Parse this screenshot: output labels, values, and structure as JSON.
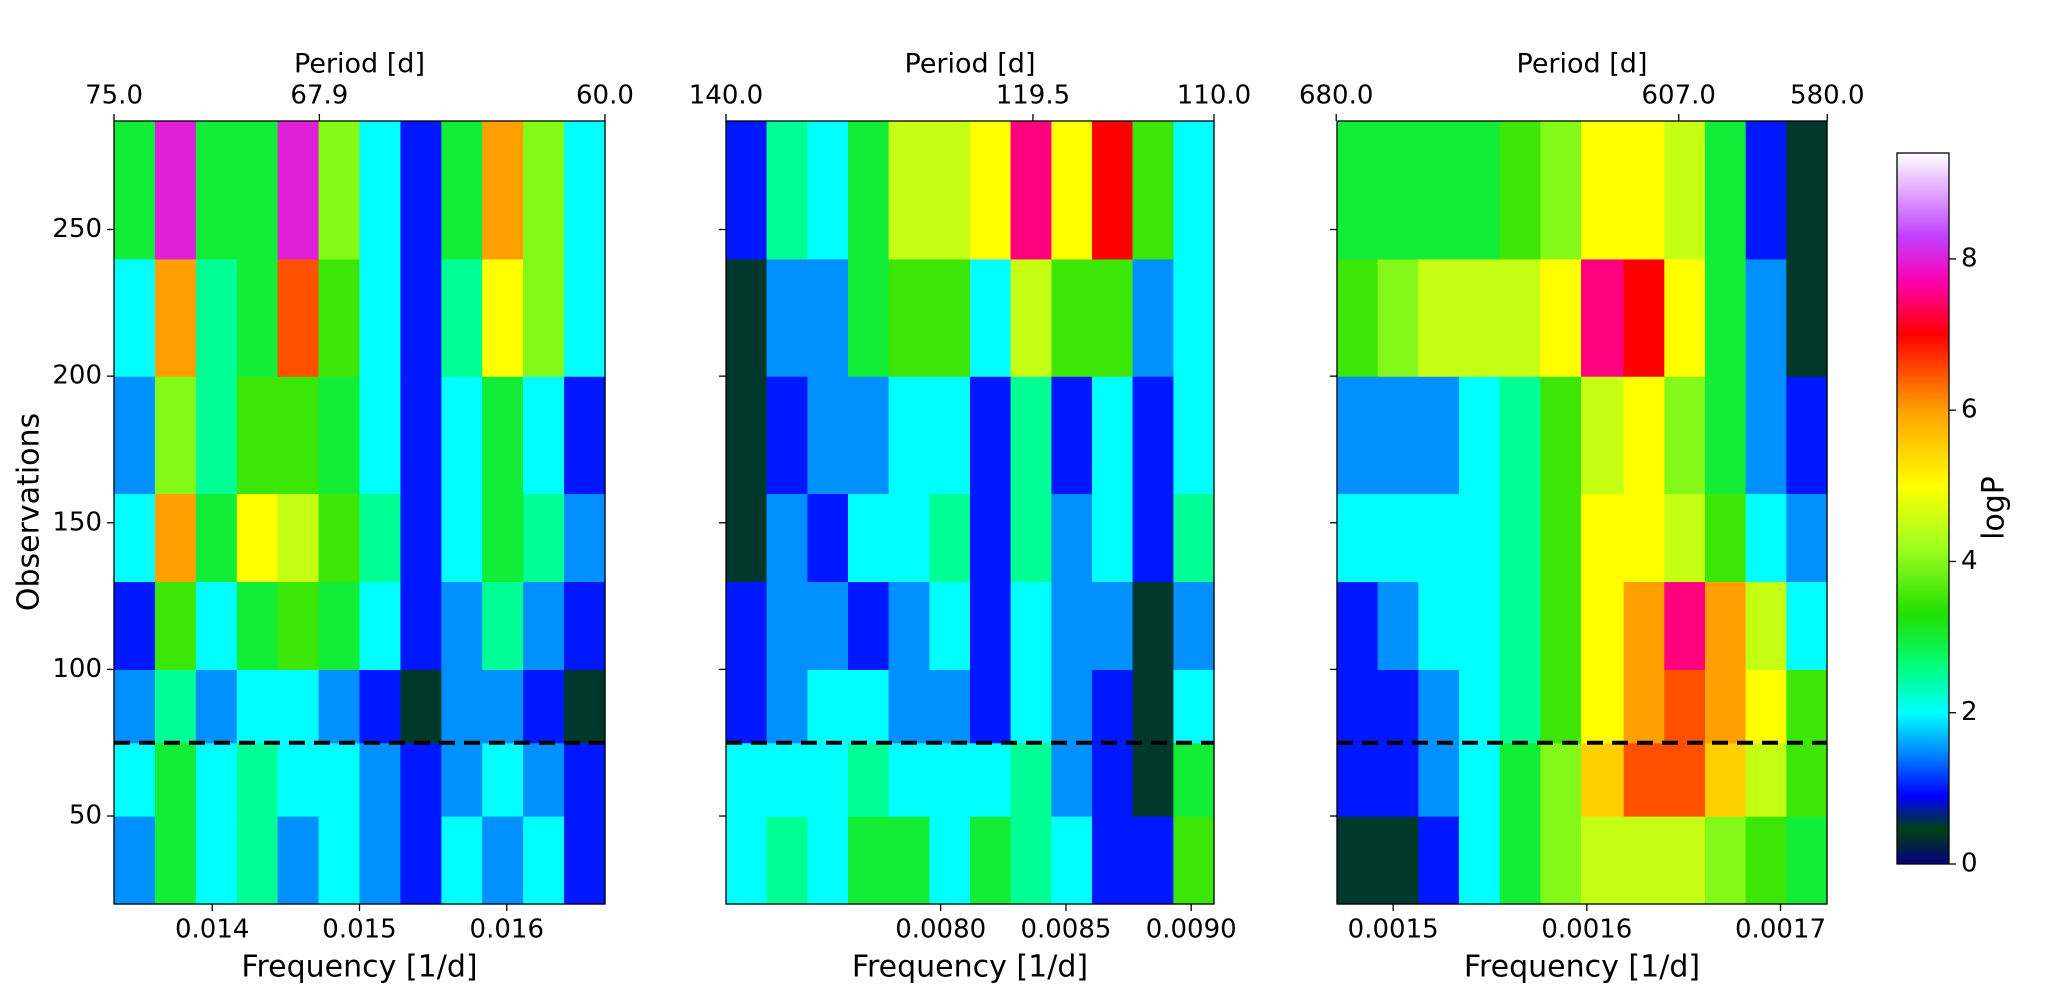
{
  "chart_data": [
    {
      "type": "heatmap",
      "xlabel": "Frequency [1/d]",
      "ylabel": "Observations",
      "top_label": "Period [d]",
      "xlim": [
        0.013333,
        0.016667
      ],
      "xticks": [
        0.014,
        0.015,
        0.016
      ],
      "top_ticks": [
        {
          "value": 75,
          "label": "75.0"
        },
        {
          "value": 67.9,
          "label": "67.9"
        },
        {
          "value": 60,
          "label": "60.0"
        }
      ],
      "ylim": [
        20,
        287
      ],
      "yticks": [
        50,
        100,
        150,
        200,
        250
      ],
      "show_ytick_labels": true,
      "x_bins": [
        0.013333,
        0.013611,
        0.013889,
        0.014167,
        0.014444,
        0.014722,
        0.015,
        0.015278,
        0.015556,
        0.015833,
        0.016111,
        0.016389,
        0.016667
      ],
      "y_bins": [
        20,
        50,
        75,
        100,
        130,
        160,
        200,
        240,
        287
      ],
      "z": [
        [
          1.5,
          3,
          2,
          2.5,
          1.5,
          2,
          1.5,
          1,
          2,
          1.5,
          2,
          1
        ],
        [
          2,
          3,
          2,
          2.5,
          2,
          2,
          1.5,
          1,
          1.5,
          2,
          1.5,
          1
        ],
        [
          1.5,
          2.5,
          1.5,
          2,
          2,
          1.5,
          1,
          0.5,
          1.5,
          1.5,
          1,
          0.5
        ],
        [
          1,
          3.5,
          2,
          3,
          3.5,
          3,
          2,
          1,
          1.5,
          2.5,
          1.5,
          1
        ],
        [
          2,
          6,
          3,
          5,
          4.5,
          3.5,
          2.5,
          1,
          2,
          3,
          2.5,
          1.5
        ],
        [
          1.5,
          4,
          2.5,
          3.5,
          3.5,
          3,
          2,
          1,
          2,
          3,
          2,
          1
        ],
        [
          2,
          6,
          2.5,
          3,
          6.5,
          3.5,
          2,
          1,
          2.5,
          5,
          4,
          2
        ],
        [
          3,
          8,
          3,
          3,
          8,
          4,
          2,
          1,
          3,
          6,
          4,
          2
        ]
      ],
      "hline": {
        "y": 75,
        "color": "#000000"
      }
    },
    {
      "type": "heatmap",
      "xlabel": "Frequency [1/d]",
      "top_label": "Period [d]",
      "xlim": [
        0.007143,
        0.009091
      ],
      "xticks": [
        {
          "value": 0.008,
          "label": "0.0080"
        },
        0.0085,
        {
          "value": 0.009,
          "label": "0.0090"
        }
      ],
      "top_ticks": [
        {
          "value": 140,
          "label": "140.0"
        },
        {
          "value": 119.5,
          "label": "119.5"
        },
        {
          "value": 110,
          "label": "110.0"
        }
      ],
      "ylim": [
        20,
        287
      ],
      "yticks": [
        50,
        100,
        150,
        200,
        250
      ],
      "show_ytick_labels": false,
      "x_bins": [
        0.007143,
        0.007305,
        0.007468,
        0.00763,
        0.007792,
        0.007955,
        0.008117,
        0.008279,
        0.008442,
        0.008604,
        0.008766,
        0.008929,
        0.009091
      ],
      "y_bins": [
        20,
        50,
        75,
        100,
        130,
        160,
        200,
        240,
        287
      ],
      "z": [
        [
          2,
          2.5,
          2,
          3,
          3,
          2,
          3,
          2.5,
          2,
          1,
          1,
          3.5
        ],
        [
          2,
          2,
          2,
          2.5,
          2,
          2,
          2,
          2.5,
          1.5,
          1,
          0.5,
          3
        ],
        [
          1,
          1.5,
          2,
          2,
          1.5,
          1.5,
          1,
          2,
          1.5,
          1,
          0.5,
          2
        ],
        [
          1,
          1.5,
          1.5,
          1,
          1.5,
          2,
          1,
          2,
          1.5,
          1.5,
          0.5,
          1.5
        ],
        [
          0.5,
          1.5,
          1,
          2,
          2,
          2.5,
          1,
          2.5,
          1.5,
          2,
          1,
          2.5
        ],
        [
          0.5,
          1,
          1.5,
          1.5,
          2,
          2,
          1,
          2.5,
          1,
          2,
          1,
          2
        ],
        [
          0.5,
          1.5,
          1.5,
          3,
          3.5,
          3.5,
          2,
          4.5,
          3.5,
          3.5,
          1.5,
          2
        ],
        [
          1,
          2.5,
          2,
          3,
          4.5,
          4.5,
          5,
          7.5,
          5,
          7,
          3.5,
          2
        ]
      ],
      "hline": {
        "y": 75,
        "color": "#000000"
      }
    },
    {
      "type": "heatmap",
      "xlabel": "Frequency [1/d]",
      "top_label": "Period [d]",
      "xlim": [
        0.001471,
        0.001724
      ],
      "xticks": [
        0.0015,
        0.0016,
        0.0017
      ],
      "top_ticks": [
        {
          "value": 680,
          "label": "680.0"
        },
        {
          "value": 607,
          "label": "607.0"
        },
        {
          "value": 580,
          "label": "580.0"
        }
      ],
      "ylim": [
        20,
        287
      ],
      "yticks": [
        50,
        100,
        150,
        200,
        250
      ],
      "show_ytick_labels": false,
      "x_bins": [
        0.001471,
        0.001492,
        0.001513,
        0.001534,
        0.001555,
        0.001576,
        0.001597,
        0.001619,
        0.00164,
        0.001661,
        0.001682,
        0.001703,
        0.001724
      ],
      "y_bins": [
        20,
        50,
        75,
        100,
        130,
        160,
        200,
        240,
        287
      ],
      "z": [
        [
          0.5,
          0.5,
          1,
          2,
          3,
          4,
          4.5,
          4.5,
          4.5,
          4,
          3.5,
          3
        ],
        [
          1,
          1,
          1.5,
          2,
          3,
          4,
          5.5,
          6.5,
          6.5,
          5.5,
          4.5,
          3.5
        ],
        [
          1,
          1,
          1.5,
          2,
          2.5,
          3.5,
          5,
          6,
          6.5,
          6,
          5,
          3.5
        ],
        [
          1,
          1.5,
          2,
          2,
          2.5,
          3.5,
          5,
          6,
          7.5,
          6,
          4.5,
          2
        ],
        [
          2,
          2,
          2,
          2,
          2.5,
          3.5,
          5,
          5,
          4.5,
          3.5,
          2,
          1.5
        ],
        [
          1.5,
          1.5,
          1.5,
          2,
          2.5,
          3.5,
          4.5,
          5,
          4,
          3,
          1.5,
          1
        ],
        [
          3.5,
          4,
          4.5,
          4.5,
          4.5,
          5,
          7.5,
          7,
          5,
          3,
          1.5,
          0.5
        ],
        [
          3,
          3,
          3,
          3,
          3.5,
          4,
          5,
          5,
          4.5,
          3,
          1,
          0.5
        ]
      ],
      "hline": {
        "y": 75,
        "color": "#000000"
      }
    }
  ],
  "colorbar": {
    "label": "logP",
    "lim": [
      0,
      9.4
    ],
    "ticks": [
      0,
      2,
      4,
      6,
      8
    ],
    "colormap": [
      [
        0,
        "#000080"
      ],
      [
        0.45,
        "#004010"
      ],
      [
        0.9,
        "#0000ff"
      ],
      [
        1.5,
        "#0090ff"
      ],
      [
        2,
        "#00ffff"
      ],
      [
        2.6,
        "#00ff80"
      ],
      [
        3.3,
        "#20e000"
      ],
      [
        4.2,
        "#a0ff20"
      ],
      [
        5,
        "#ffff00"
      ],
      [
        6,
        "#ffa000"
      ],
      [
        7,
        "#ff0000"
      ],
      [
        7.7,
        "#ff00b0"
      ],
      [
        8.3,
        "#c040ff"
      ],
      [
        9.4,
        "#ffffff"
      ]
    ]
  }
}
